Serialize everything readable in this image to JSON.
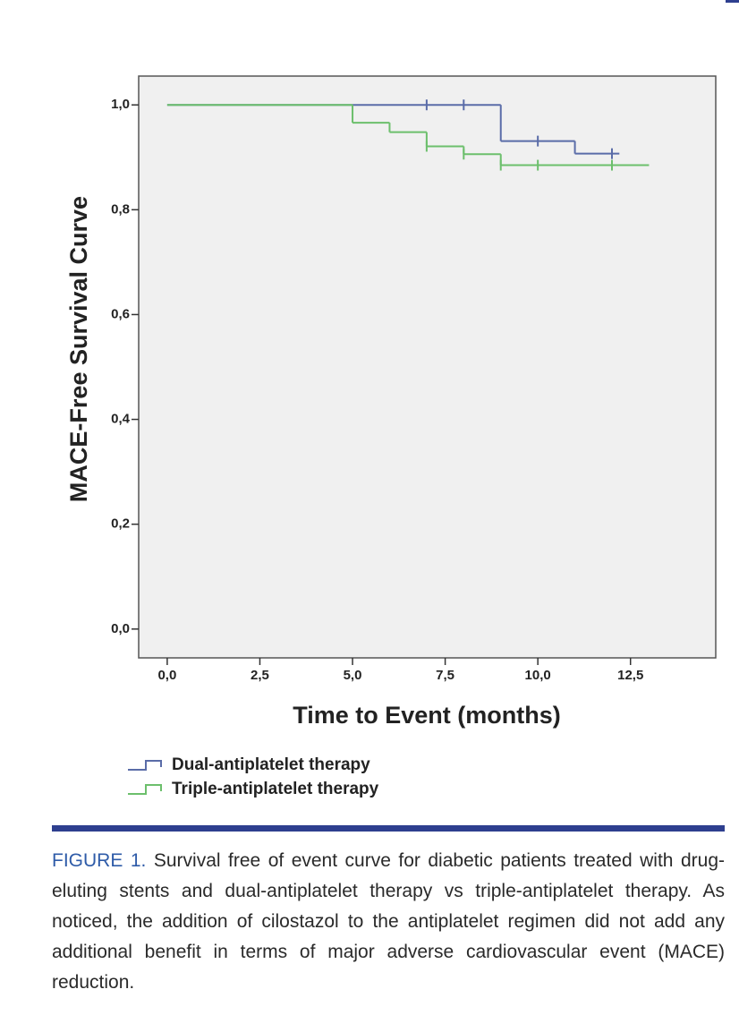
{
  "chart_data": {
    "type": "step",
    "y_label": "MACE-Free Survival Curve",
    "x_label": "Time to Event (months)",
    "xlim": [
      -0.77,
      14.8
    ],
    "ylim": [
      -0.055,
      1.055
    ],
    "xticks": [
      {
        "value": 0,
        "label": "0,0"
      },
      {
        "value": 2.5,
        "label": "2,5"
      },
      {
        "value": 5,
        "label": "5,0"
      },
      {
        "value": 7.5,
        "label": "7,5"
      },
      {
        "value": 10,
        "label": "10,0"
      },
      {
        "value": 12.5,
        "label": "12,5"
      }
    ],
    "yticks": [
      {
        "value": 0,
        "label": "0,0"
      },
      {
        "value": 0.2,
        "label": "0,2"
      },
      {
        "value": 0.4,
        "label": "0,4"
      },
      {
        "value": 0.6,
        "label": "0,6"
      },
      {
        "value": 0.8,
        "label": "0,8"
      },
      {
        "value": 1.0,
        "label": "1,0"
      }
    ],
    "series": [
      {
        "name": "Dual-antiplatelet therapy",
        "color": "#5a6ca8",
        "x": [
          0,
          9,
          11,
          12.2
        ],
        "values": [
          1.0,
          0.931,
          0.907,
          0.907
        ],
        "censored_x": [
          7,
          8,
          10,
          12
        ],
        "censored_values": [
          1.0,
          1.0,
          0.931,
          0.907
        ]
      },
      {
        "name": "Triple-antiplatelet therapy",
        "color": "#6cbf6c",
        "x": [
          0,
          5,
          6,
          7,
          8,
          9,
          13
        ],
        "values": [
          1.0,
          0.966,
          0.948,
          0.921,
          0.906,
          0.885,
          0.885
        ],
        "censored_x": [
          7,
          8,
          9,
          10,
          12
        ],
        "censored_values": [
          0.921,
          0.906,
          0.885,
          0.885,
          0.885
        ]
      }
    ]
  },
  "caption": {
    "label": "FIGURE 1.",
    "text": "Survival free of event curve for diabetic patients treated with drug-eluting stents and dual-antiplatelet therapy vs triple-antiplatelet therapy. As noticed, the addition of cilostazol to the antiplatelet regimen did not add any additional benefit in terms of major adverse cardiovascular event (MACE) reduction."
  }
}
